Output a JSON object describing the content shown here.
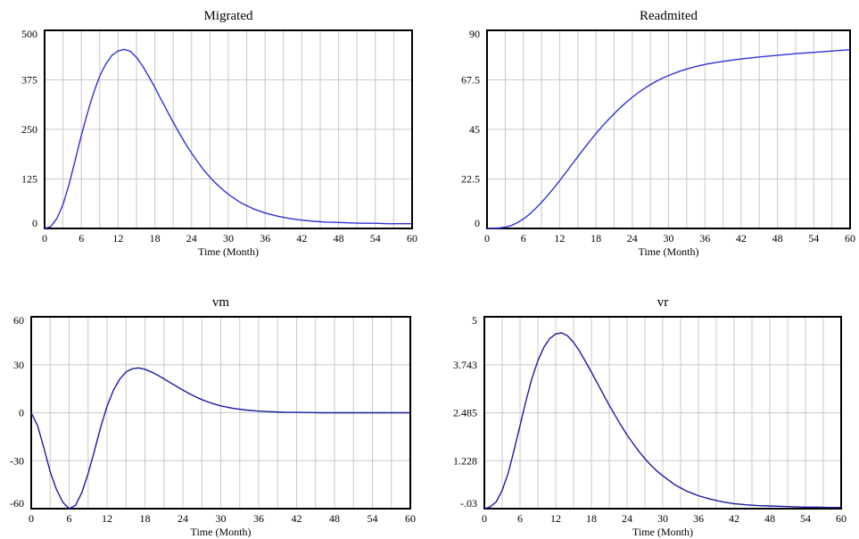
{
  "chart_data": [
    {
      "type": "line",
      "title": "Migrated",
      "xlabel": "Time (Month)",
      "ylabel": "",
      "xlim": [
        0,
        60
      ],
      "ylim": [
        0,
        500
      ],
      "x_ticks": [
        "0",
        "6",
        "12",
        "18",
        "24",
        "30",
        "36",
        "42",
        "48",
        "54",
        "60"
      ],
      "y_ticks": [
        "0",
        "125",
        "250",
        "375",
        "500"
      ],
      "grid": true,
      "line_color": "#3030d8",
      "series": [
        {
          "x": [
            0,
            1,
            2,
            3,
            4,
            5,
            6,
            7,
            8,
            9,
            10,
            11,
            12,
            13,
            14,
            15,
            16,
            17,
            18,
            19,
            20,
            21,
            22,
            23,
            24,
            25,
            26,
            27,
            28,
            29,
            30,
            32,
            34,
            36,
            38,
            40,
            42,
            44,
            46,
            48,
            50,
            52,
            54,
            56,
            58,
            60
          ],
          "values": [
            0,
            5,
            25,
            60,
            112,
            172,
            235,
            292,
            342,
            385,
            415,
            437,
            448,
            452,
            447,
            432,
            410,
            384,
            356,
            326,
            297,
            268,
            240,
            214,
            190,
            168,
            147,
            129,
            113,
            99,
            86,
            65,
            50,
            39,
            31,
            25,
            21,
            18,
            16,
            15,
            14,
            13,
            13,
            12,
            12,
            12
          ]
        }
      ]
    },
    {
      "type": "line",
      "title": "Readmited",
      "xlabel": "Time (Month)",
      "ylabel": "",
      "xlim": [
        0,
        60
      ],
      "ylim": [
        0,
        90
      ],
      "x_ticks": [
        "0",
        "6",
        "12",
        "18",
        "24",
        "30",
        "36",
        "42",
        "48",
        "54",
        "60"
      ],
      "y_ticks": [
        "0",
        "22.5",
        "45",
        "67.5",
        "90"
      ],
      "grid": true,
      "line_color": "#3030d8",
      "series": [
        {
          "x": [
            0,
            2,
            3,
            4,
            5,
            6,
            7,
            8,
            9,
            10,
            11,
            12,
            13,
            14,
            15,
            16,
            17,
            18,
            19,
            20,
            21,
            22,
            23,
            24,
            25,
            26,
            27,
            28,
            29,
            30,
            32,
            34,
            36,
            38,
            40,
            42,
            45,
            48,
            51,
            54,
            57,
            60
          ],
          "values": [
            0,
            0.2,
            0.6,
            1.3,
            2.6,
            4.3,
            6.4,
            9,
            11.8,
            14.9,
            18.2,
            21.7,
            25.3,
            29,
            32.6,
            36.2,
            39.7,
            43.1,
            46.3,
            49.3,
            52.1,
            54.8,
            57.3,
            59.6,
            61.7,
            63.6,
            65.3,
            66.9,
            68.3,
            69.5,
            71.6,
            73.2,
            74.5,
            75.5,
            76.3,
            77,
            77.9,
            78.7,
            79.4,
            80,
            80.6,
            81.2
          ]
        }
      ]
    },
    {
      "type": "line",
      "title": "vm",
      "xlabel": "Time (Month)",
      "ylabel": "",
      "xlim": [
        0,
        60
      ],
      "ylim": [
        -60,
        60
      ],
      "x_ticks": [
        "0",
        "6",
        "12",
        "18",
        "24",
        "30",
        "36",
        "42",
        "48",
        "54",
        "60"
      ],
      "y_ticks": [
        "-60",
        "-30",
        "0",
        "30",
        "60"
      ],
      "grid": true,
      "line_color": "#1a1aa0",
      "series": [
        {
          "x": [
            0,
            1,
            2,
            3,
            4,
            5,
            6,
            7,
            8,
            9,
            10,
            11,
            12,
            13,
            14,
            15,
            16,
            17,
            18,
            19,
            20,
            21,
            22,
            23,
            24,
            25,
            26,
            27,
            28,
            29,
            30,
            32,
            34,
            36,
            38,
            40,
            42,
            44,
            46,
            48,
            50,
            54,
            60
          ],
          "values": [
            0,
            -8,
            -22,
            -37,
            -48,
            -56,
            -60,
            -58,
            -50,
            -38,
            -24,
            -9,
            4,
            14,
            21,
            25.5,
            27.5,
            28,
            27.2,
            25.5,
            23.5,
            21.2,
            18.8,
            16.5,
            14.2,
            12,
            10,
            8.2,
            6.7,
            5.4,
            4.3,
            2.7,
            1.7,
            1,
            0.6,
            0.3,
            0.2,
            0.1,
            0,
            0,
            0,
            0,
            0
          ]
        }
      ]
    },
    {
      "type": "line",
      "title": "vr",
      "xlabel": "Time (Month)",
      "ylabel": "",
      "xlim": [
        0,
        60
      ],
      "ylim": [
        -0.03,
        5
      ],
      "x_ticks": [
        "0",
        "6",
        "12",
        "18",
        "24",
        "30",
        "36",
        "42",
        "48",
        "54",
        "60"
      ],
      "y_ticks": [
        "-.03",
        "1.228",
        "2.485",
        "3.743",
        "5"
      ],
      "grid": true,
      "line_color": "#1a1aa0",
      "series": [
        {
          "x": [
            0,
            1,
            2,
            3,
            4,
            5,
            6,
            7,
            8,
            9,
            10,
            11,
            12,
            13,
            14,
            15,
            16,
            17,
            18,
            19,
            20,
            21,
            22,
            23,
            24,
            25,
            26,
            27,
            28,
            29,
            30,
            32,
            34,
            36,
            38,
            40,
            42,
            44,
            46,
            48,
            50,
            52,
            54,
            56,
            58,
            60
          ],
          "values": [
            -0.03,
            0.02,
            0.15,
            0.45,
            0.9,
            1.5,
            2.15,
            2.8,
            3.38,
            3.85,
            4.2,
            4.43,
            4.55,
            4.58,
            4.5,
            4.33,
            4.1,
            3.83,
            3.55,
            3.26,
            2.97,
            2.68,
            2.41,
            2.15,
            1.9,
            1.68,
            1.47,
            1.28,
            1.11,
            0.96,
            0.83,
            0.6,
            0.43,
            0.31,
            0.22,
            0.15,
            0.1,
            0.07,
            0.05,
            0.04,
            0.03,
            0.02,
            0.01,
            0.01,
            0.0,
            0.0
          ]
        }
      ]
    }
  ]
}
